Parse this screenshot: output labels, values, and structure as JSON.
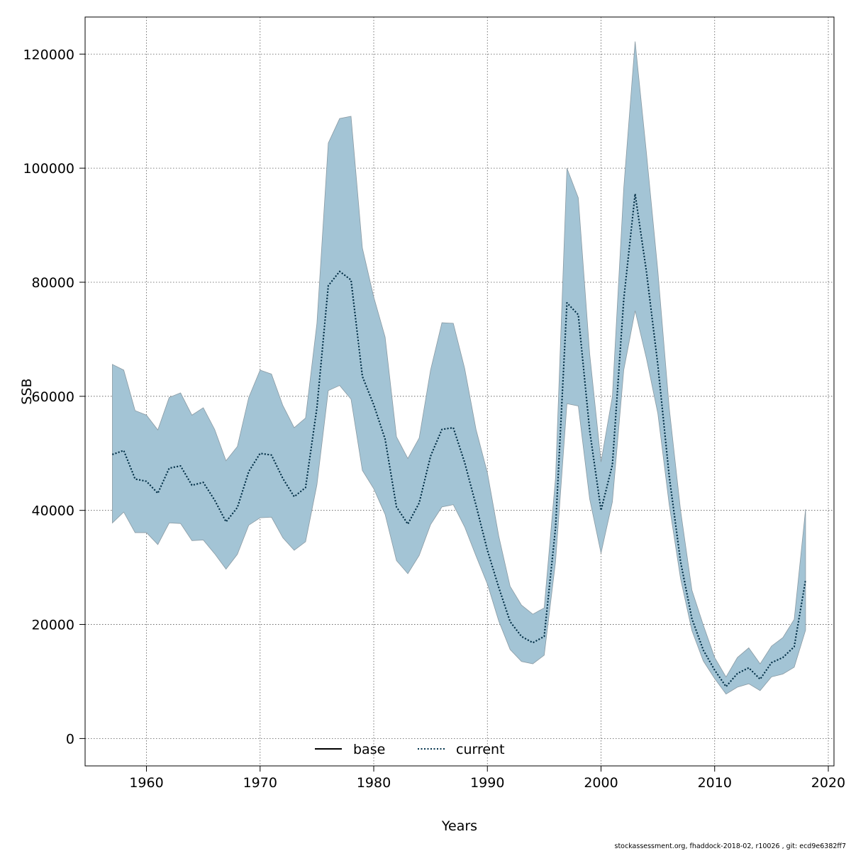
{
  "chart_data": {
    "type": "area",
    "title": "",
    "xlabel": "Years",
    "ylabel": "SSB",
    "xlim": [
      1954.6,
      2020.5
    ],
    "ylim": [
      -4800,
      126500
    ],
    "x_ticks": [
      1960,
      1970,
      1980,
      1990,
      2000,
      2010,
      2020
    ],
    "y_ticks": [
      0,
      20000,
      40000,
      60000,
      80000,
      100000,
      120000
    ],
    "grid": true,
    "legend": {
      "placement": "bottom-center",
      "entries": [
        "base",
        "current"
      ]
    },
    "colors": {
      "band": "#a3c4d5",
      "band_edge": "#8a9aa3",
      "line": "#00314a"
    },
    "x": [
      1957,
      1958,
      1959,
      1960,
      1961,
      1962,
      1963,
      1964,
      1965,
      1966,
      1967,
      1968,
      1969,
      1970,
      1971,
      1972,
      1973,
      1974,
      1975,
      1976,
      1977,
      1978,
      1979,
      1980,
      1981,
      1982,
      1983,
      1984,
      1985,
      1986,
      1987,
      1988,
      1989,
      1990,
      1991,
      1992,
      1993,
      1994,
      1995,
      1996,
      1997,
      1998,
      1999,
      2000,
      2001,
      2002,
      2003,
      2004,
      2005,
      2006,
      2007,
      2008,
      2009,
      2010,
      2011,
      2012,
      2013,
      2014,
      2015,
      2016,
      2017,
      2018
    ],
    "series": [
      {
        "name": "current",
        "values": [
          49800,
          50500,
          45500,
          45100,
          43000,
          47400,
          47800,
          44400,
          44900,
          41800,
          38000,
          40500,
          46800,
          50000,
          49700,
          45600,
          42400,
          44000,
          58000,
          79400,
          81900,
          80400,
          63500,
          58500,
          52500,
          40600,
          37600,
          41300,
          49500,
          54200,
          54500,
          48400,
          40900,
          33000,
          26500,
          20500,
          17900,
          16800,
          17900,
          37000,
          76400,
          74300,
          54000,
          40000,
          48000,
          77000,
          95500,
          81800,
          65500,
          46000,
          31000,
          21000,
          15500,
          12000,
          9100,
          11400,
          12400,
          10400,
          13300,
          14200,
          16100,
          27800
        ]
      },
      {
        "name": "lower",
        "values": [
          37800,
          39700,
          36100,
          36100,
          34000,
          37800,
          37700,
          34700,
          34800,
          32400,
          29700,
          32300,
          37400,
          38700,
          38800,
          35200,
          33000,
          34500,
          44500,
          61000,
          61900,
          59500,
          47000,
          43800,
          39300,
          31200,
          28900,
          32100,
          37500,
          40600,
          41000,
          37100,
          32000,
          27100,
          20600,
          15600,
          13500,
          13100,
          14600,
          31000,
          58700,
          58300,
          42000,
          32500,
          41500,
          64600,
          75000,
          66600,
          57000,
          41000,
          28000,
          18900,
          13600,
          10500,
          7800,
          9000,
          9600,
          8400,
          10800,
          11300,
          12500,
          19000
        ]
      },
      {
        "name": "upper",
        "values": [
          65600,
          64600,
          57500,
          56700,
          54100,
          59800,
          60600,
          56700,
          58000,
          54200,
          48700,
          51200,
          59800,
          64600,
          63900,
          58400,
          54500,
          56200,
          72800,
          104400,
          108700,
          109100,
          86000,
          77400,
          70400,
          52900,
          49100,
          52700,
          64600,
          72900,
          72800,
          64900,
          54200,
          46600,
          35500,
          26700,
          23400,
          21800,
          22900,
          45800,
          100000,
          94800,
          67500,
          48500,
          60000,
          96500,
          122200,
          102600,
          82000,
          58000,
          40000,
          26000,
          19900,
          14200,
          10800,
          14200,
          15900,
          13100,
          16200,
          17700,
          20900,
          40200
        ]
      }
    ]
  },
  "footer": "stockassessment.org, fhaddock-2018-02, r10026 , git: ecd9e6382ff7"
}
